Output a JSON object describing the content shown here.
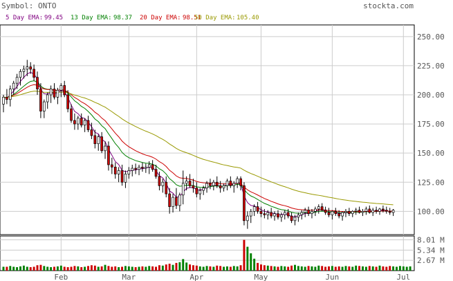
{
  "header": {
    "symbol_label": "Symbol: ONTO",
    "site": "stockta.com"
  },
  "legend": [
    {
      "label": "5 Day EMA:",
      "value": "99.45",
      "color": "#800080"
    },
    {
      "label": "13 Day EMA:",
      "value": "98.37",
      "color": "#008000"
    },
    {
      "label": "20 Day EMA:",
      "value": "98.51",
      "color": "#cc0000"
    },
    {
      "label": "50 Day EMA:",
      "value": "105.40",
      "color": "#999900"
    }
  ],
  "chart_data": [
    {
      "type": "candlestick",
      "ylim": [
        80,
        260
      ],
      "price_ticks": [
        "250.00",
        "225.00",
        "200.00",
        "175.00",
        "150.00",
        "125.00",
        "100.00"
      ],
      "price_tick_values": [
        250,
        225,
        200,
        175,
        150,
        125,
        100
      ],
      "month_labels": [
        "Feb",
        "Mar",
        "Apr",
        "May",
        "Jun",
        "Jul"
      ],
      "month_positions": [
        17,
        37,
        57,
        76,
        97,
        118
      ],
      "day_count": 121,
      "grid": true,
      "colors": {
        "up": "#ffffff",
        "down": "#cc0000",
        "wick": "#000000"
      },
      "candles": [
        [
          192,
          200,
          185,
          198
        ],
        [
          198,
          205,
          192,
          196
        ],
        [
          196,
          208,
          190,
          205
        ],
        [
          205,
          212,
          200,
          210
        ],
        [
          210,
          218,
          205,
          215
        ],
        [
          215,
          222,
          208,
          220
        ],
        [
          220,
          225,
          214,
          222
        ],
        [
          222,
          230,
          216,
          224
        ],
        [
          224,
          228,
          218,
          222
        ],
        [
          222,
          226,
          212,
          215
        ],
        [
          215,
          220,
          200,
          205
        ],
        [
          205,
          210,
          180,
          186
        ],
        [
          186,
          196,
          180,
          194
        ],
        [
          194,
          202,
          188,
          200
        ],
        [
          200,
          208,
          193,
          205
        ],
        [
          205,
          210,
          196,
          198
        ],
        [
          198,
          206,
          192,
          204
        ],
        [
          204,
          210,
          198,
          208
        ],
        [
          208,
          212,
          198,
          200
        ],
        [
          200,
          204,
          185,
          188
        ],
        [
          188,
          192,
          176,
          178
        ],
        [
          178,
          184,
          170,
          175
        ],
        [
          175,
          182,
          170,
          180
        ],
        [
          180,
          184,
          172,
          174
        ],
        [
          174,
          180,
          168,
          178
        ],
        [
          178,
          182,
          168,
          170
        ],
        [
          170,
          176,
          162,
          165
        ],
        [
          165,
          170,
          154,
          158
        ],
        [
          158,
          166,
          152,
          164
        ],
        [
          164,
          168,
          150,
          152
        ],
        [
          152,
          160,
          145,
          156
        ],
        [
          156,
          160,
          135,
          140
        ],
        [
          140,
          146,
          132,
          138
        ],
        [
          138,
          142,
          128,
          132
        ],
        [
          132,
          138,
          125,
          135
        ],
        [
          135,
          140,
          122,
          125
        ],
        [
          125,
          135,
          120,
          132
        ],
        [
          132,
          138,
          128,
          135
        ],
        [
          135,
          140,
          130,
          137
        ],
        [
          137,
          141,
          132,
          136
        ],
        [
          136,
          140,
          131,
          138
        ],
        [
          138,
          142,
          134,
          137
        ],
        [
          137,
          141,
          133,
          138
        ],
        [
          138,
          143,
          132,
          140
        ],
        [
          140,
          144,
          134,
          136
        ],
        [
          136,
          140,
          128,
          130
        ],
        [
          130,
          134,
          118,
          122
        ],
        [
          122,
          128,
          116,
          125
        ],
        [
          125,
          130,
          112,
          115
        ],
        [
          115,
          120,
          98,
          104
        ],
        [
          104,
          115,
          99,
          112
        ],
        [
          112,
          120,
          102,
          105
        ],
        [
          105,
          116,
          100,
          114
        ],
        [
          114,
          135,
          106,
          124
        ],
        [
          124,
          130,
          118,
          126
        ],
        [
          126,
          132,
          120,
          122
        ],
        [
          122,
          128,
          116,
          120
        ],
        [
          120,
          125,
          112,
          115
        ],
        [
          115,
          120,
          110,
          118
        ],
        [
          118,
          122,
          114,
          120
        ],
        [
          120,
          126,
          116,
          124
        ],
        [
          124,
          128,
          119,
          122
        ],
        [
          122,
          127,
          118,
          125
        ],
        [
          125,
          130,
          120,
          122
        ],
        [
          122,
          126,
          116,
          120
        ],
        [
          120,
          124,
          117,
          122
        ],
        [
          122,
          128,
          118,
          126
        ],
        [
          126,
          130,
          120,
          122
        ],
        [
          122,
          126,
          116,
          124
        ],
        [
          124,
          130,
          120,
          128
        ],
        [
          128,
          130,
          118,
          122
        ],
        [
          122,
          125,
          88,
          92
        ],
        [
          92,
          100,
          85,
          96
        ],
        [
          96,
          102,
          90,
          100
        ],
        [
          100,
          106,
          96,
          104
        ],
        [
          104,
          108,
          98,
          100
        ],
        [
          100,
          104,
          95,
          98
        ],
        [
          98,
          102,
          94,
          97
        ],
        [
          97,
          101,
          93,
          99
        ],
        [
          99,
          103,
          94,
          96
        ],
        [
          96,
          100,
          92,
          98
        ],
        [
          98,
          101,
          93,
          95
        ],
        [
          95,
          99,
          91,
          97
        ],
        [
          97,
          101,
          93,
          99
        ],
        [
          99,
          102,
          94,
          96
        ],
        [
          96,
          99,
          90,
          92
        ],
        [
          92,
          97,
          88,
          95
        ],
        [
          95,
          99,
          91,
          97
        ],
        [
          97,
          101,
          93,
          99
        ],
        [
          99,
          103,
          95,
          101
        ],
        [
          101,
          104,
          96,
          98
        ],
        [
          98,
          102,
          94,
          100
        ],
        [
          100,
          104,
          96,
          102
        ],
        [
          102,
          106,
          98,
          104
        ],
        [
          104,
          107,
          100,
          101
        ],
        [
          101,
          104,
          97,
          99
        ],
        [
          99,
          103,
          95,
          97
        ],
        [
          97,
          101,
          93,
          100
        ],
        [
          100,
          103,
          96,
          98
        ],
        [
          98,
          101,
          94,
          96
        ],
        [
          96,
          100,
          92,
          99
        ],
        [
          99,
          102,
          95,
          100
        ],
        [
          100,
          103,
          96,
          98
        ],
        [
          98,
          101,
          95,
          100
        ],
        [
          100,
          103,
          97,
          101
        ],
        [
          101,
          104,
          98,
          99
        ],
        [
          99,
          102,
          96,
          100
        ],
        [
          100,
          104,
          97,
          102
        ],
        [
          102,
          105,
          98,
          99
        ],
        [
          99,
          103,
          96,
          101
        ],
        [
          101,
          104,
          98,
          100
        ],
        [
          100,
          103,
          97,
          102
        ],
        [
          102,
          105,
          99,
          101
        ],
        [
          101,
          104,
          98,
          100
        ],
        [
          100,
          103,
          97,
          99
        ],
        [
          99,
          102,
          96,
          101
        ]
      ]
    },
    {
      "type": "bar",
      "ylim": [
        0,
        9
      ],
      "volume_ticks": [
        "8.01 M",
        "5.34 M",
        "2.67 M"
      ],
      "volume_tick_values": [
        8.01,
        5.34,
        2.67
      ],
      "volumes": [
        1.0,
        1.0,
        1.2,
        1.0,
        0.9,
        1.1,
        1.3,
        1.0,
        0.9,
        1.0,
        1.4,
        1.5,
        1.2,
        1.0,
        0.9,
        1.0,
        1.1,
        1.3,
        1.0,
        0.9,
        1.0,
        1.2,
        1.1,
        0.9,
        1.0,
        1.2,
        1.4,
        1.3,
        1.0,
        1.1,
        1.5,
        1.2,
        1.0,
        1.1,
        0.9,
        1.0,
        1.2,
        1.1,
        1.0,
        0.9,
        1.0,
        1.1,
        1.0,
        1.2,
        1.1,
        1.0,
        1.4,
        1.3,
        1.6,
        1.8,
        1.5,
        2.0,
        2.2,
        3.0,
        2.1,
        1.6,
        1.4,
        1.3,
        1.1,
        1.0,
        1.2,
        1.1,
        1.0,
        1.3,
        1.2,
        1.0,
        1.1,
        1.0,
        1.2,
        1.1,
        1.4,
        8.0,
        6.2,
        4.5,
        3.1,
        2.0,
        1.6,
        1.4,
        1.3,
        1.2,
        1.1,
        1.0,
        1.2,
        1.1,
        1.0,
        1.3,
        1.5,
        1.2,
        1.1,
        1.0,
        1.2,
        1.1,
        1.0,
        1.3,
        1.2,
        1.0,
        1.1,
        1.2,
        1.0,
        1.1,
        1.0,
        1.2,
        1.1,
        1.0,
        1.3,
        1.2,
        1.1,
        1.0,
        1.2,
        1.1,
        1.0,
        1.3,
        1.1,
        1.0,
        1.2,
        1.1,
        1.0,
        1.2,
        1.1,
        1.0,
        1.1
      ],
      "colors": {
        "up": "#008000",
        "down": "#cc0000"
      }
    }
  ]
}
